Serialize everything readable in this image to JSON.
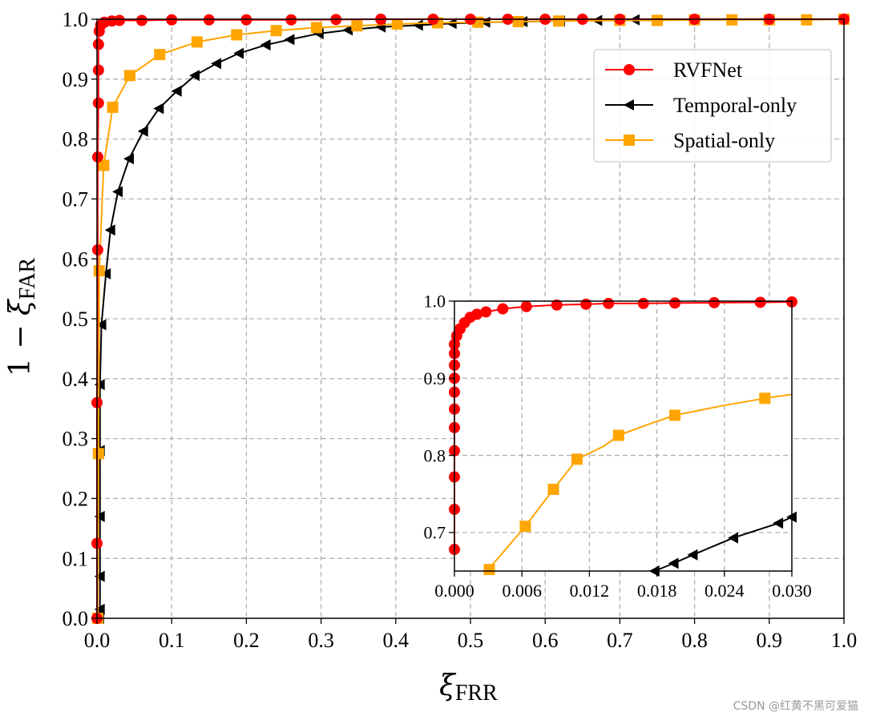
{
  "chart_data": [
    {
      "type": "line",
      "role": "main",
      "xlabel": "ξFRR",
      "ylabel": "1 − ξFAR",
      "xlim": [
        0,
        1
      ],
      "ylim": [
        0,
        1
      ],
      "grid": true,
      "xticks": [
        "0.0",
        "0.1",
        "0.2",
        "0.3",
        "0.4",
        "0.5",
        "0.6",
        "0.7",
        "0.8",
        "0.9",
        "1.0"
      ],
      "yticks": [
        "0.0",
        "0.1",
        "0.2",
        "0.3",
        "0.4",
        "0.5",
        "0.6",
        "0.7",
        "0.8",
        "0.9",
        "1.0"
      ],
      "legend": {
        "placement": "top-right",
        "entries": [
          "RVFNet",
          "Temporal-only",
          "Spatial-only"
        ]
      },
      "series": [
        {
          "name": "RVFNet",
          "color": "#ff0000",
          "marker": "circle",
          "points": [
            [
              0,
              0.0
            ],
            [
              0,
              0.125
            ],
            [
              0,
              0.36
            ],
            [
              0.001,
              0.615
            ],
            [
              0.001,
              0.77
            ],
            [
              0.002,
              0.86
            ],
            [
              0.002,
              0.915
            ],
            [
              0.002,
              0.958
            ],
            [
              0.003,
              0.98
            ],
            [
              0.005,
              0.99
            ],
            [
              0.01,
              0.995
            ],
            [
              0.02,
              0.997
            ],
            [
              0.03,
              0.998
            ],
            [
              0.06,
              0.998
            ],
            [
              0.1,
              0.999
            ],
            [
              0.15,
              0.999
            ],
            [
              0.2,
              0.999
            ],
            [
              0.26,
              0.999
            ],
            [
              0.32,
              0.9995
            ],
            [
              0.38,
              1.0
            ],
            [
              0.45,
              1.0
            ],
            [
              0.5,
              1.0
            ],
            [
              0.55,
              1.0
            ],
            [
              0.6,
              1.0
            ],
            [
              0.65,
              1.0
            ],
            [
              0.7,
              1.0
            ],
            [
              0.8,
              1.0
            ],
            [
              0.9,
              1.0
            ],
            [
              1.0,
              1.0
            ]
          ]
        },
        {
          "name": "Temporal-only",
          "color": "#000000",
          "marker": "triangle-left",
          "points": [
            [
              0.003,
              0.0
            ],
            [
              0.004,
              0.015
            ],
            [
              0.004,
              0.07
            ],
            [
              0.004,
              0.17
            ],
            [
              0.004,
              0.28
            ],
            [
              0.004,
              0.39
            ],
            [
              0.006,
              0.49
            ],
            [
              0.012,
              0.575
            ],
            [
              0.018,
              0.648
            ],
            [
              0.028,
              0.712
            ],
            [
              0.043,
              0.767
            ],
            [
              0.062,
              0.813
            ],
            [
              0.083,
              0.851
            ],
            [
              0.107,
              0.88
            ],
            [
              0.131,
              0.906
            ],
            [
              0.16,
              0.926
            ],
            [
              0.19,
              0.943
            ],
            [
              0.226,
              0.957
            ],
            [
              0.258,
              0.966
            ],
            [
              0.297,
              0.976
            ],
            [
              0.336,
              0.982
            ],
            [
              0.38,
              0.987
            ],
            [
              0.43,
              0.99
            ],
            [
              0.475,
              0.993
            ],
            [
              0.52,
              0.995
            ],
            [
              0.57,
              0.996
            ],
            [
              0.62,
              0.997
            ],
            [
              0.67,
              0.998
            ],
            [
              0.72,
              0.999
            ],
            [
              0.8,
              0.999
            ],
            [
              0.9,
              1.0
            ],
            [
              1.0,
              1.0
            ]
          ]
        },
        {
          "name": "Spatial-only",
          "color": "#ffa500",
          "marker": "square",
          "points": [
            [
              0.001,
              0.0
            ],
            [
              0.002,
              0.275
            ],
            [
              0.003,
              0.58
            ],
            [
              0.009,
              0.756
            ],
            [
              0.021,
              0.853
            ],
            [
              0.044,
              0.906
            ],
            [
              0.084,
              0.941
            ],
            [
              0.134,
              0.962
            ],
            [
              0.187,
              0.974
            ],
            [
              0.24,
              0.981
            ],
            [
              0.294,
              0.986
            ],
            [
              0.348,
              0.989
            ],
            [
              0.402,
              0.992
            ],
            [
              0.456,
              0.994
            ],
            [
              0.51,
              0.995
            ],
            [
              0.564,
              0.996
            ],
            [
              0.618,
              0.997
            ],
            [
              0.7,
              0.998
            ],
            [
              0.75,
              0.998
            ],
            [
              0.8,
              0.999
            ],
            [
              0.85,
              0.999
            ],
            [
              0.9,
              0.999
            ],
            [
              0.95,
              0.999
            ],
            [
              1.0,
              1.0
            ]
          ]
        }
      ]
    },
    {
      "type": "line",
      "role": "inset",
      "xlim": [
        0,
        0.03
      ],
      "ylim": [
        0.65,
        1.0
      ],
      "grid": true,
      "xticks": [
        "0.000",
        "0.006",
        "0.012",
        "0.018",
        "0.024",
        "0.030"
      ],
      "yticks": [
        "0.7",
        "0.8",
        "0.9",
        "1.0"
      ],
      "series": [
        {
          "name": "RVFNet",
          "color": "#ff0000",
          "marker": "circle",
          "points": [
            [
              0.0,
              0.678
            ],
            [
              0.0,
              0.73
            ],
            [
              0.0,
              0.772
            ],
            [
              0.0,
              0.806
            ],
            [
              0.0,
              0.836
            ],
            [
              0.0,
              0.86
            ],
            [
              0.0,
              0.882
            ],
            [
              0.0,
              0.9
            ],
            [
              0.0,
              0.917
            ],
            [
              0.0,
              0.932
            ],
            [
              0.0,
              0.944
            ],
            [
              0.0002,
              0.955
            ],
            [
              0.0005,
              0.964
            ],
            [
              0.0009,
              0.972
            ],
            [
              0.0014,
              0.979
            ],
            [
              0.002,
              0.983
            ],
            [
              0.0028,
              0.986
            ],
            [
              0.0043,
              0.99
            ],
            [
              0.0064,
              0.993
            ],
            [
              0.0091,
              0.995
            ],
            [
              0.0117,
              0.996
            ],
            [
              0.0137,
              0.997
            ],
            [
              0.0168,
              0.997
            ],
            [
              0.0196,
              0.9975
            ],
            [
              0.0231,
              0.998
            ],
            [
              0.0272,
              0.9985
            ],
            [
              0.03,
              0.999
            ]
          ]
        },
        {
          "name": "Temporal-only",
          "color": "#000000",
          "marker": "triangle-left",
          "points": [
            [
              0.0178,
              0.65
            ],
            [
              0.0195,
              0.66
            ],
            [
              0.0212,
              0.671
            ],
            [
              0.0248,
              0.693
            ],
            [
              0.0288,
              0.712
            ],
            [
              0.03,
              0.72
            ]
          ]
        },
        {
          "name": "Spatial-only",
          "color": "#ffa500",
          "marker": "square",
          "points": [
            [
              0.0029,
              0.65
            ],
            [
              0.0063,
              0.708
            ],
            [
              0.0088,
              0.756
            ],
            [
              0.0109,
              0.795
            ],
            [
              0.0133,
              0.812
            ],
            [
              0.0146,
              0.826
            ],
            [
              0.0172,
              0.84
            ],
            [
              0.0196,
              0.852
            ],
            [
              0.0237,
              0.864
            ],
            [
              0.0276,
              0.874
            ],
            [
              0.03,
              0.879
            ]
          ],
          "marked": [
            [
              0.0031,
              0.652
            ],
            [
              0.0063,
              0.708
            ],
            [
              0.0088,
              0.756
            ],
            [
              0.0109,
              0.795
            ],
            [
              0.0146,
              0.826
            ],
            [
              0.0196,
              0.852
            ],
            [
              0.0276,
              0.874
            ]
          ]
        }
      ]
    }
  ],
  "watermark": "CSDN @红黄不黑可爱猫"
}
